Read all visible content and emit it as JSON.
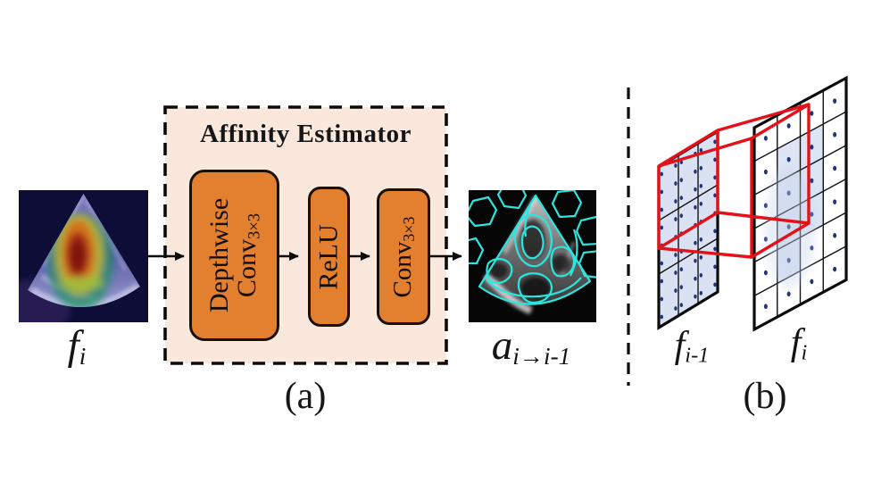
{
  "figure": {
    "panel_a": {
      "caption": "(a)",
      "input_label": {
        "base": "f",
        "sub": "i"
      },
      "output_label": {
        "base": "a",
        "sub": "i→i-1"
      },
      "estimator": {
        "title": "Affinity Estimator",
        "depthwise_block": {
          "line1": "Depthwise",
          "line2_base": "Conv",
          "line2_sub": "3×3"
        },
        "relu_block": {
          "label": "ReLU"
        },
        "conv_block": {
          "base": "Conv",
          "sub": "3×3"
        }
      }
    },
    "panel_b": {
      "caption": "(b)",
      "left_label": {
        "base": "f",
        "sub": "i-1"
      },
      "right_label": {
        "base": "f",
        "sub": "i"
      },
      "left_grid": {
        "cols": 3,
        "rows": 3,
        "dot_cols": 2,
        "dot_rows": 3,
        "all_shaded": true
      },
      "right_grid": {
        "cols": 4,
        "rows": 6,
        "dot_cols": 1,
        "dot_rows": 1,
        "shaded_cells": [
          [
            2,
            2
          ],
          [
            2,
            3
          ],
          [
            2,
            4
          ],
          [
            2,
            5
          ],
          [
            3,
            2
          ],
          [
            3,
            3
          ],
          [
            3,
            4
          ]
        ]
      }
    },
    "colors": {
      "block_orange": "#E2802F",
      "estimator_bg": "#FAE8DC",
      "frustum_red": "#E31218",
      "grid_cell_blue": "#D9E1F3",
      "grid_dot_navy": "#223377",
      "contour_cyan": "#2BE5DE",
      "heat_core_red": "#7E150C"
    }
  }
}
